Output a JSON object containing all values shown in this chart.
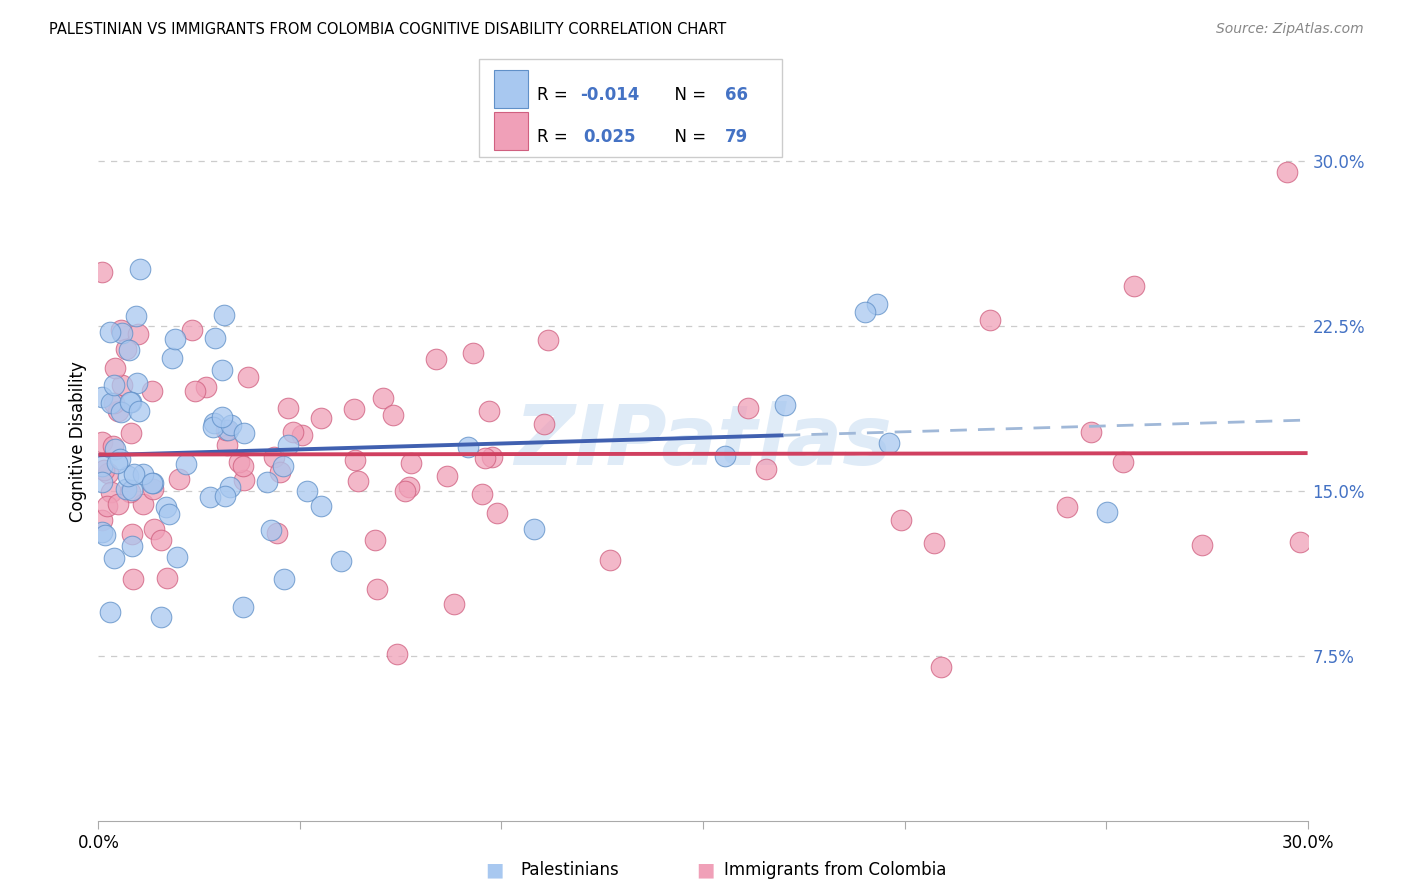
{
  "title": "PALESTINIAN VS IMMIGRANTS FROM COLOMBIA COGNITIVE DISABILITY CORRELATION CHART",
  "source": "Source: ZipAtlas.com",
  "ylabel": "Cognitive Disability",
  "ytick_values": [
    0.075,
    0.15,
    0.225,
    0.3
  ],
  "ytick_labels": [
    "7.5%",
    "15.0%",
    "22.5%",
    "30.0%"
  ],
  "xtick_values": [
    0.0,
    0.05,
    0.1,
    0.15,
    0.2,
    0.25,
    0.3
  ],
  "xlim": [
    0.0,
    0.3
  ],
  "ylim": [
    0.0,
    0.345
  ],
  "blue_fill": "#A8C8F0",
  "blue_edge": "#6090C8",
  "pink_fill": "#F0A0B8",
  "pink_edge": "#D06080",
  "blue_line": "#4060B0",
  "pink_line": "#D04060",
  "blue_dashed": "#A0B8D8",
  "watermark_color": "#C0D8F0",
  "watermark_text": "ZIPatlas",
  "legend_r1_prefix": "R = ",
  "legend_r1_val": "-0.014",
  "legend_n1": "N = 66",
  "legend_r2_prefix": "R =  ",
  "legend_r2_val": "0.025",
  "legend_n2": "N = 79",
  "label_palestinians": "Palestinians",
  "label_colombia": "Immigrants from Colombia",
  "text_blue": "#4472C4",
  "text_pink": "#D04060",
  "text_black": "#333333"
}
